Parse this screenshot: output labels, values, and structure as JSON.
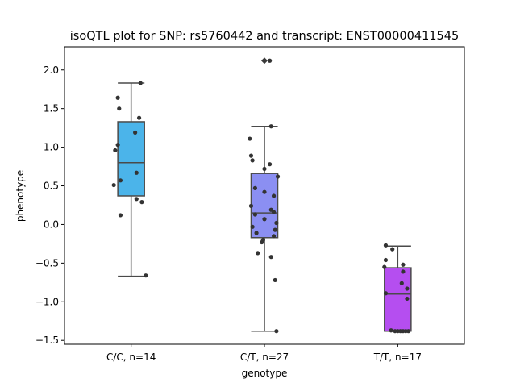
{
  "chart_data": {
    "type": "box",
    "title": "isoQTL plot for SNP: rs5760442 and transcript: ENST00000411545",
    "xlabel": "genotype",
    "ylabel": "phenotype",
    "ylim": [
      -1.55,
      2.3
    ],
    "yticks": [
      -1.5,
      -1.0,
      -0.5,
      0.0,
      0.5,
      1.0,
      1.5,
      2.0
    ],
    "ytick_labels": [
      "−1.5",
      "−1.0",
      "−0.5",
      "0.0",
      "0.5",
      "1.0",
      "1.5",
      "2.0"
    ],
    "grid": false,
    "categories": [
      "C/C, n=14",
      "C/T, n=27",
      "T/T, n=17"
    ],
    "boxes": [
      {
        "category": "C/C, n=14",
        "color": "#4bb4ea",
        "q1": 0.37,
        "median": 0.8,
        "q3": 1.33,
        "whisker_low": -0.67,
        "whisker_high": 1.83,
        "outliers": []
      },
      {
        "category": "C/T, n=27",
        "color": "#8b8ff2",
        "q1": -0.17,
        "median": 0.15,
        "q3": 0.66,
        "whisker_low": -1.38,
        "whisker_high": 1.27,
        "outliers": [
          2.12
        ]
      },
      {
        "category": "T/T, n=17",
        "color": "#b54ef0",
        "q1": -1.38,
        "median": -0.9,
        "q3": -0.56,
        "whisker_low": -1.38,
        "whisker_high": -0.28,
        "outliers": []
      }
    ],
    "points": [
      [
        {
          "x": 0.07,
          "y": 1.83
        },
        {
          "x": -0.1,
          "y": 1.64
        },
        {
          "x": -0.09,
          "y": 1.5
        },
        {
          "x": 0.06,
          "y": 1.38
        },
        {
          "x": 0.03,
          "y": 1.19
        },
        {
          "x": -0.1,
          "y": 1.03
        },
        {
          "x": -0.12,
          "y": 0.96
        },
        {
          "x": 0.04,
          "y": 0.67
        },
        {
          "x": -0.08,
          "y": 0.57
        },
        {
          "x": -0.13,
          "y": 0.51
        },
        {
          "x": 0.04,
          "y": 0.33
        },
        {
          "x": 0.08,
          "y": 0.29
        },
        {
          "x": -0.08,
          "y": 0.12
        },
        {
          "x": 0.11,
          "y": -0.66
        }
      ],
      [
        {
          "x": 0.04,
          "y": 2.12
        },
        {
          "x": 0.05,
          "y": 1.27
        },
        {
          "x": -0.11,
          "y": 1.11
        },
        {
          "x": -0.1,
          "y": 0.89
        },
        {
          "x": -0.09,
          "y": 0.83
        },
        {
          "x": 0.04,
          "y": 0.78
        },
        {
          "x": 0.0,
          "y": 0.72
        },
        {
          "x": 0.1,
          "y": 0.62
        },
        {
          "x": -0.07,
          "y": 0.47
        },
        {
          "x": 0.0,
          "y": 0.42
        },
        {
          "x": 0.07,
          "y": 0.37
        },
        {
          "x": -0.1,
          "y": 0.24
        },
        {
          "x": 0.05,
          "y": 0.19
        },
        {
          "x": 0.07,
          "y": 0.16
        },
        {
          "x": -0.07,
          "y": 0.13
        },
        {
          "x": 0.0,
          "y": 0.07
        },
        {
          "x": 0.09,
          "y": 0.02
        },
        {
          "x": -0.09,
          "y": -0.03
        },
        {
          "x": 0.08,
          "y": -0.07
        },
        {
          "x": -0.06,
          "y": -0.11
        },
        {
          "x": 0.07,
          "y": -0.15
        },
        {
          "x": -0.01,
          "y": -0.2
        },
        {
          "x": -0.02,
          "y": -0.23
        },
        {
          "x": -0.05,
          "y": -0.37
        },
        {
          "x": 0.05,
          "y": -0.42
        },
        {
          "x": 0.08,
          "y": -0.72
        },
        {
          "x": 0.09,
          "y": -1.38
        }
      ],
      [
        {
          "x": -0.09,
          "y": -0.27
        },
        {
          "x": -0.04,
          "y": -0.32
        },
        {
          "x": -0.09,
          "y": -0.46
        },
        {
          "x": 0.04,
          "y": -0.52
        },
        {
          "x": -0.1,
          "y": -0.55
        },
        {
          "x": 0.04,
          "y": -0.61
        },
        {
          "x": 0.03,
          "y": -0.76
        },
        {
          "x": 0.07,
          "y": -0.83
        },
        {
          "x": -0.09,
          "y": -0.89
        },
        {
          "x": 0.07,
          "y": -0.96
        },
        {
          "x": -0.05,
          "y": -1.37
        },
        {
          "x": -0.02,
          "y": -1.38
        },
        {
          "x": 0.0,
          "y": -1.38
        },
        {
          "x": 0.02,
          "y": -1.38
        },
        {
          "x": 0.04,
          "y": -1.38
        },
        {
          "x": 0.06,
          "y": -1.38
        },
        {
          "x": 0.08,
          "y": -1.38
        }
      ]
    ]
  }
}
